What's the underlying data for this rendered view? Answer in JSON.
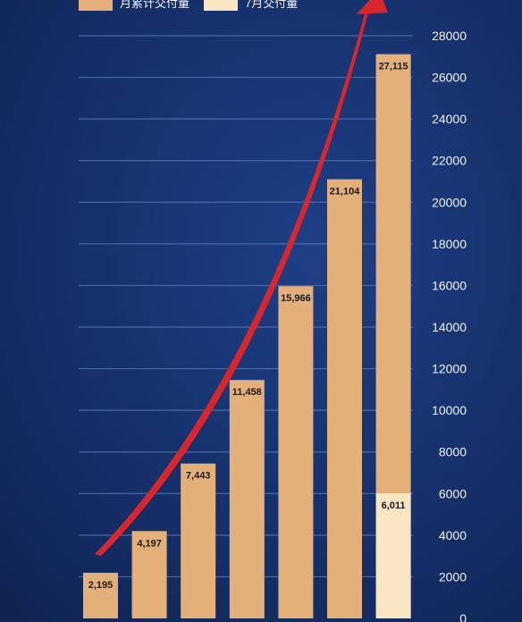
{
  "chart_data": {
    "type": "bar",
    "categories": [
      "",
      "",
      "",
      "",
      "",
      "",
      ""
    ],
    "series": [
      {
        "name": "月累计交付量",
        "values": [
          2195,
          4197,
          7443,
          11458,
          15966,
          21104,
          27115
        ],
        "labels": [
          "2,195",
          "4,197",
          "7,443",
          "11,458",
          "15,966",
          "21,104",
          "27,115"
        ]
      },
      {
        "name": "7月交付量",
        "values": [
          null,
          null,
          null,
          null,
          null,
          null,
          6011
        ],
        "labels": [
          "",
          "",
          "",
          "",
          "",
          "",
          "6,011"
        ]
      }
    ],
    "yticks": [
      "0",
      "2000",
      "4000",
      "6000",
      "8000",
      "10000",
      "12000",
      "14000",
      "16000",
      "18000",
      "20000",
      "22000",
      "24000",
      "26000",
      "28000"
    ],
    "ylim": [
      0,
      28000
    ],
    "grid": true,
    "legend_position": "top-left",
    "trend_arrow": true
  },
  "colors": {
    "cumulative": "#e4b07a",
    "july": "#f8e6c2",
    "grid": "#4c68a4",
    "arrow": "#d8262c",
    "background": "#17306c"
  }
}
